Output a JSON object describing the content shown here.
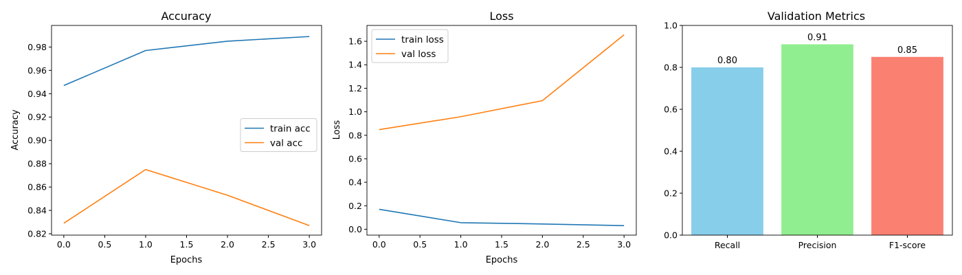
{
  "chart_data": [
    {
      "type": "line",
      "title": "Accuracy",
      "xlabel": "Epochs",
      "ylabel": "Accuracy",
      "x": [
        0,
        1,
        2,
        3
      ],
      "xticks": [
        "0.0",
        "0.5",
        "1.0",
        "1.5",
        "2.0",
        "2.5",
        "3.0"
      ],
      "xlim": [
        -0.15,
        3.15
      ],
      "yticks": [
        "0.82",
        "0.84",
        "0.86",
        "0.88",
        "0.90",
        "0.92",
        "0.94",
        "0.96",
        "0.98"
      ],
      "ylim": [
        0.8188,
        0.9985
      ],
      "legend_position": "center-right",
      "series": [
        {
          "name": "train acc",
          "color": "#1f77b4",
          "values": [
            0.947,
            0.977,
            0.985,
            0.989
          ]
        },
        {
          "name": "val acc",
          "color": "#ff7f0e",
          "values": [
            0.829,
            0.875,
            0.853,
            0.827
          ]
        }
      ]
    },
    {
      "type": "line",
      "title": "Loss",
      "xlabel": "Epochs",
      "ylabel": "Loss",
      "x": [
        0,
        1,
        2,
        3
      ],
      "xticks": [
        "0.0",
        "0.5",
        "1.0",
        "1.5",
        "2.0",
        "2.5",
        "3.0"
      ],
      "xlim": [
        -0.15,
        3.15
      ],
      "yticks": [
        "0.0",
        "0.2",
        "0.4",
        "0.6",
        "0.8",
        "1.0",
        "1.2",
        "1.4",
        "1.6"
      ],
      "ylim": [
        -0.05,
        1.735
      ],
      "legend_position": "upper-left",
      "series": [
        {
          "name": "train loss",
          "color": "#1f77b4",
          "values": [
            0.17,
            0.056,
            0.045,
            0.031
          ]
        },
        {
          "name": "val loss",
          "color": "#ff7f0e",
          "values": [
            0.848,
            0.958,
            1.095,
            1.655
          ]
        }
      ]
    },
    {
      "type": "bar",
      "title": "Validation Metrics",
      "categories": [
        "Recall",
        "Precision",
        "F1-score"
      ],
      "values": [
        0.8,
        0.91,
        0.85
      ],
      "data_labels": [
        "0.80",
        "0.91",
        "0.85"
      ],
      "colors": [
        "#87ceeb",
        "#90ee90",
        "#fa8072"
      ],
      "yticks": [
        "0.0",
        "0.2",
        "0.4",
        "0.6",
        "0.8",
        "1.0"
      ],
      "ylim": [
        0,
        1
      ]
    }
  ]
}
